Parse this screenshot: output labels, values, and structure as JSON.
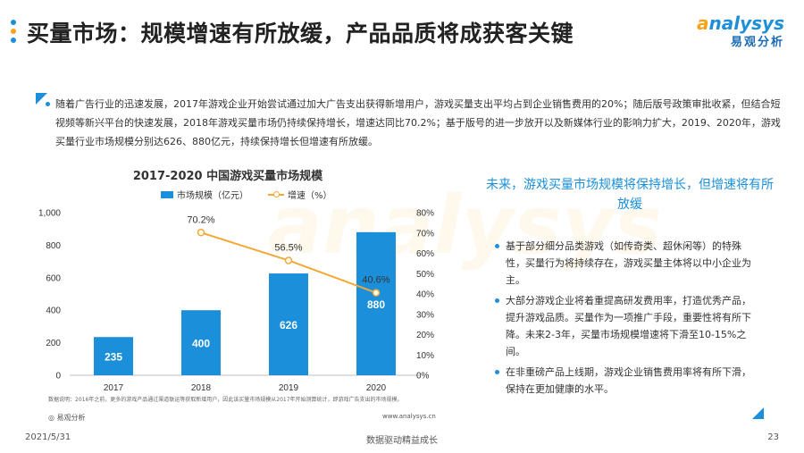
{
  "header": {
    "title": "买量市场：规模增速有所放缓，产品品质将成获客关键",
    "logo_en_a": "a",
    "logo_en_rest": "nalysys",
    "logo_cn": "易观分析"
  },
  "intro": {
    "text": "随着广告行业的迅速发展，2017年游戏企业开始尝试通过加大广告支出获得新增用户，游戏买量支出平均占到企业销售费用的20%；随后版号政策审批收紧，但结合短视频等新兴平台的快速发展，2018年游戏买量市场仍持续保持增长，增速达同比70.2%；基于版号的进一步放开以及新媒体行业的影响力扩大，2019、2020年，游戏买量行业市场规模分别达626、880亿元，持续保持增长但增速有所放缓。"
  },
  "colors": {
    "accent": "#1b8fd9",
    "line": "#f2a935",
    "dots": [
      "#1b8fd9",
      "#f7a21b",
      "#1b8fd9"
    ]
  },
  "chart_data": {
    "type": "bar",
    "title": "2017-2020 中国游戏买量市场规模",
    "categories": [
      "2017",
      "2018",
      "2019",
      "2020"
    ],
    "series": [
      {
        "name": "市场规模（亿元）",
        "type": "bar",
        "axis": "left",
        "values": [
          235,
          400,
          626,
          880
        ],
        "data_labels": [
          "235",
          "400",
          "626",
          "880"
        ]
      },
      {
        "name": "增速（%）",
        "type": "line",
        "axis": "right",
        "values": [
          null,
          70.2,
          56.5,
          40.6
        ],
        "data_labels": [
          "",
          "70.2%",
          "56.5%",
          "40.6%"
        ]
      }
    ],
    "y_left": {
      "range": [
        0,
        1000
      ],
      "ticks": [
        "0",
        "200",
        "400",
        "600",
        "800",
        "1,000"
      ]
    },
    "y_right": {
      "range": [
        0,
        80
      ],
      "ticks": [
        "0%",
        "10%",
        "20%",
        "30%",
        "40%",
        "50%",
        "60%",
        "70%",
        "80%"
      ]
    },
    "grid": false,
    "legend_position": "top"
  },
  "note": "数据说明：2016年之前，更多的游戏产品通过渠道联运等获取新增用户，因此该买量市场规模从2017年开始测算统计，即游戏广告支出的市场规模。",
  "source_logo": "◎ 易观分析",
  "source_url": "www.analysys.cn",
  "side": {
    "title": "未来，游戏买量市场规模将保持增长，但增速将有所放缓",
    "points": [
      "基于部分细分品类游戏（如传奇类、超休闲等）的特殊性，买量行为将持续存在，游戏买量主体将以中小企业为主。",
      "大部分游戏企业将着重提高研发费用率，打造优秀产品，提升游戏品质。买量作为一项推广手段，重要性将有所下降。未来2-3年，买量市场规模增速将下滑至10-15%之间。",
      "在非重磅产品上线期，游戏企业销售费用率将有所下滑，保持在更加健康的水平。"
    ]
  },
  "footer": {
    "date": "2021/5/31",
    "slogan": "数据驱动精益成长",
    "page": "23"
  },
  "watermark": "analysys"
}
